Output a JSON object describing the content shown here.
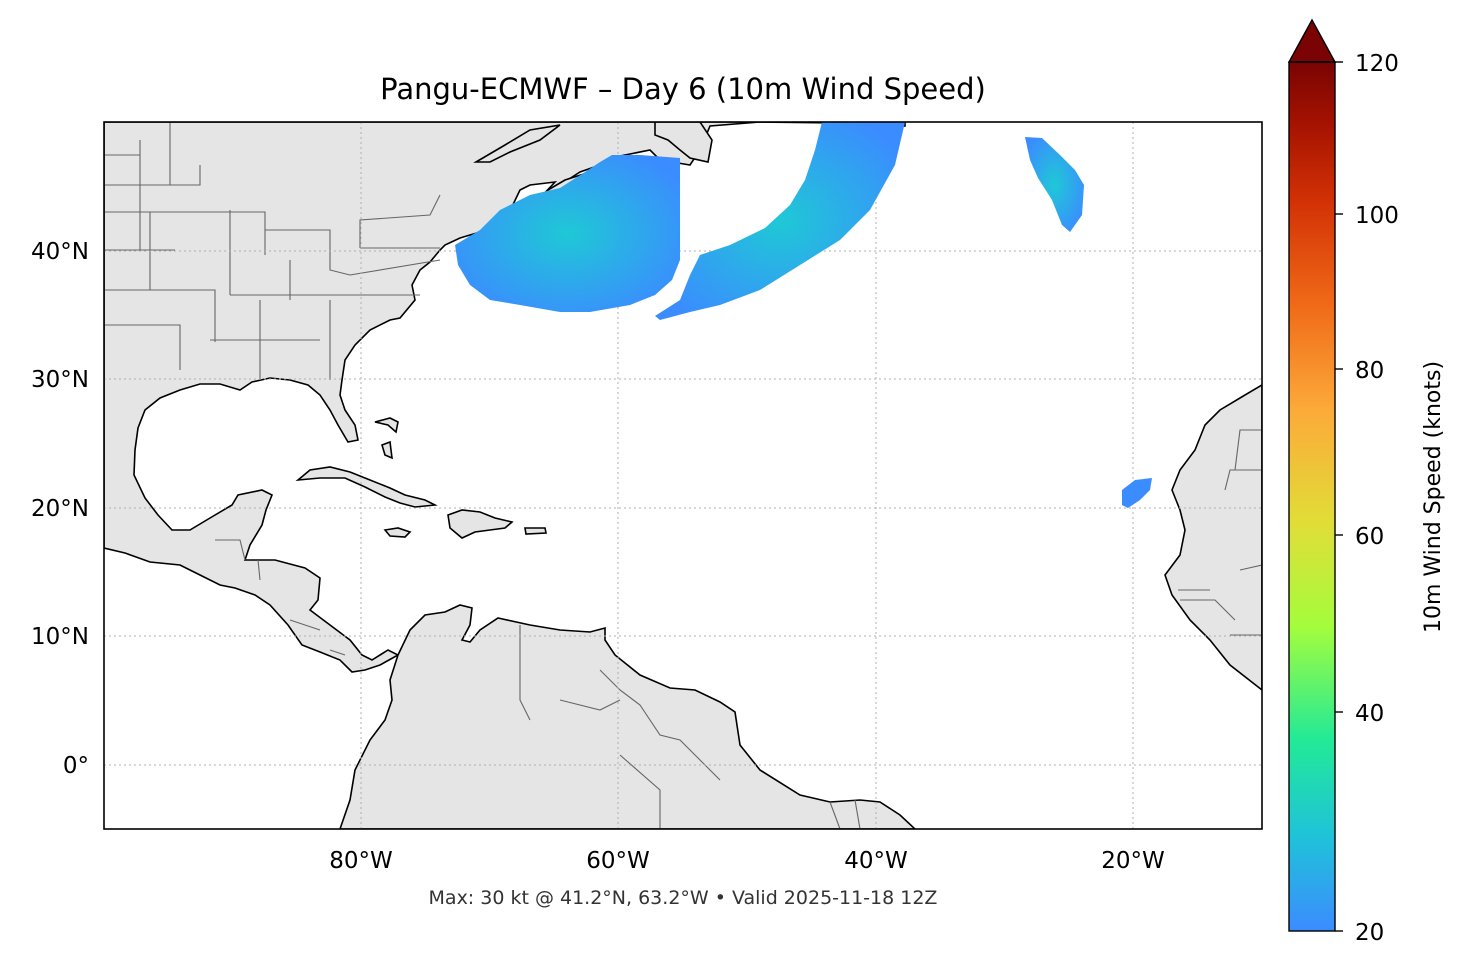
{
  "title": "Pangu-ECMWF – Day 6 (10m Wind Speed)",
  "caption": "Max: 30 kt @ 41.2°N, 63.2°W • Valid 2025-11-18 12Z",
  "map": {
    "lon_range": [
      -100,
      -10
    ],
    "lat_range": [
      -5,
      50
    ],
    "lon_ticks": [
      {
        "value": -80,
        "label": "80°W"
      },
      {
        "value": -60,
        "label": "60°W"
      },
      {
        "value": -40,
        "label": "40°W"
      },
      {
        "value": -20,
        "label": "20°W"
      }
    ],
    "lat_ticks": [
      {
        "value": 40,
        "label": "40°N"
      },
      {
        "value": 30,
        "label": "30°N"
      },
      {
        "value": 20,
        "label": "20°N"
      },
      {
        "value": 10,
        "label": "10°N"
      },
      {
        "value": 0,
        "label": "0°"
      }
    ],
    "gridlines": true,
    "land_color": "#e5e5e5",
    "coastline_color": "#000000",
    "border_color": "#666666"
  },
  "colorbar": {
    "label": "10m Wind Speed (knots)",
    "range": [
      20,
      120
    ],
    "ticks": [
      {
        "value": 120,
        "label": "120"
      },
      {
        "value": 100,
        "label": "100"
      },
      {
        "value": 80,
        "label": "80"
      },
      {
        "value": 60,
        "label": "60"
      },
      {
        "value": 40,
        "label": "40"
      },
      {
        "value": 20,
        "label": "20"
      }
    ],
    "colors": [
      "#3b8cff",
      "#1fc3d8",
      "#22ea97",
      "#a4fd3c",
      "#e1dd37",
      "#fcaa39",
      "#f06a18",
      "#d23105",
      "#a41201",
      "#7a0403"
    ],
    "extend": "max"
  },
  "wind_regions": [
    {
      "name": "mid-atlantic-jet",
      "max_kt": 30,
      "max_lat": 41.2,
      "max_lon": -63.2
    },
    {
      "name": "northeast-band"
    },
    {
      "name": "azores-patch"
    },
    {
      "name": "canary-patch"
    }
  ]
}
